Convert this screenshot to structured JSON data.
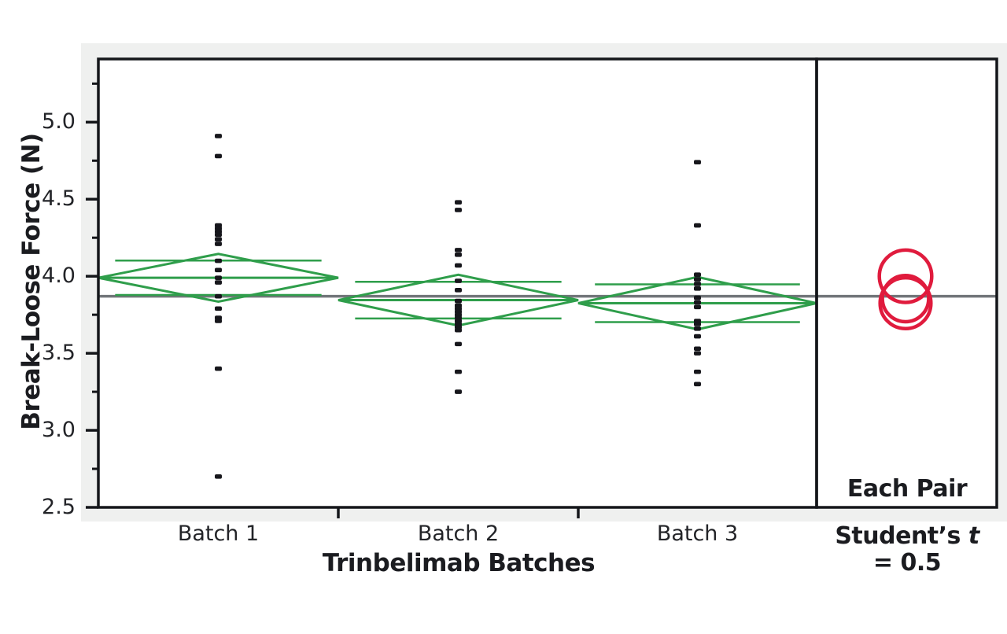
{
  "colors": {
    "green": "#2f9e4b",
    "red": "#e01b3d",
    "gray_line": "#717579",
    "frame": "#14161a",
    "marker": "#17171c",
    "panel_bg": "#eff0ef",
    "text": "#1b1c20"
  },
  "chart_data": {
    "type": "scatter",
    "title": "",
    "xlabel": "Trinbelimab Batches",
    "ylabel": "Break-Loose Force (N)",
    "ylim": [
      2.5,
      5.41
    ],
    "ytick_labels": [
      "5.0",
      "4.5",
      "4.0",
      "3.5",
      "3.0",
      "2.5"
    ],
    "ytick_values": [
      5.0,
      4.5,
      4.0,
      3.5,
      3.0,
      2.5
    ],
    "ytick_minor_values": [
      5.25,
      4.75,
      4.25,
      3.75,
      3.25,
      2.75
    ],
    "categories": [
      "Batch 1",
      "Batch 2",
      "Batch 3"
    ],
    "grid": false,
    "legend_position": "none",
    "grand_mean": 3.87,
    "series": [
      {
        "name": "Batch 1",
        "mean": 3.99,
        "ci_upper": 4.145,
        "ci_lower": 3.835,
        "values": [
          4.91,
          4.78,
          4.33,
          4.31,
          4.29,
          4.27,
          4.24,
          4.21,
          4.1,
          4.04,
          3.99,
          3.96,
          3.87,
          3.79,
          3.73,
          3.71,
          3.4,
          2.7
        ]
      },
      {
        "name": "Batch 2",
        "mean": 3.845,
        "ci_upper": 4.01,
        "ci_lower": 3.68,
        "values": [
          4.48,
          4.43,
          4.17,
          4.14,
          4.07,
          3.97,
          3.91,
          3.84,
          3.81,
          3.79,
          3.77,
          3.75,
          3.73,
          3.71,
          3.69,
          3.67,
          3.65,
          3.56,
          3.38,
          3.25
        ]
      },
      {
        "name": "Batch 3",
        "mean": 3.825,
        "ci_upper": 3.995,
        "ci_lower": 3.655,
        "values": [
          4.74,
          4.33,
          4.01,
          3.98,
          3.95,
          3.92,
          3.86,
          3.83,
          3.8,
          3.71,
          3.69,
          3.66,
          3.61,
          3.53,
          3.5,
          3.38,
          3.3
        ]
      }
    ],
    "comparison_circles": [
      {
        "center": 4.0,
        "radius": 0.17
      },
      {
        "center": 3.855,
        "radius": 0.15
      },
      {
        "center": 3.825,
        "radius": 0.165
      }
    ]
  },
  "right_panel": {
    "line1": "Each Pair",
    "students_prefix": "Student’s",
    "students_t": "t",
    "line3": "= 0.5"
  }
}
